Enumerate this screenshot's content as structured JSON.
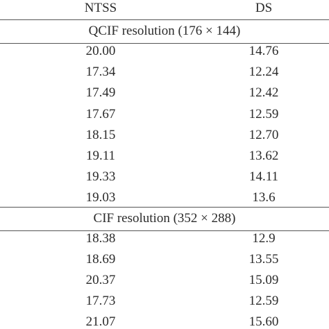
{
  "table": {
    "header": [
      "NTSS",
      "DS"
    ],
    "sections": [
      {
        "title": "QCIF resolution (176 × 144)",
        "rows": [
          [
            "20.00",
            "14.76"
          ],
          [
            "17.34",
            "12.24"
          ],
          [
            "17.49",
            "12.42"
          ],
          [
            "17.67",
            "12.59"
          ],
          [
            "18.15",
            "12.70"
          ],
          [
            "19.11",
            "13.62"
          ],
          [
            "19.33",
            "14.11"
          ],
          [
            "19.03",
            "13.6"
          ]
        ]
      },
      {
        "title": "CIF resolution (352 × 288)",
        "rows": [
          [
            "18.38",
            "12.9"
          ],
          [
            "18.69",
            "13.55"
          ],
          [
            "20.37",
            "15.09"
          ],
          [
            "17.73",
            "12.59"
          ],
          [
            "21.07",
            "15.60"
          ]
        ]
      }
    ]
  }
}
